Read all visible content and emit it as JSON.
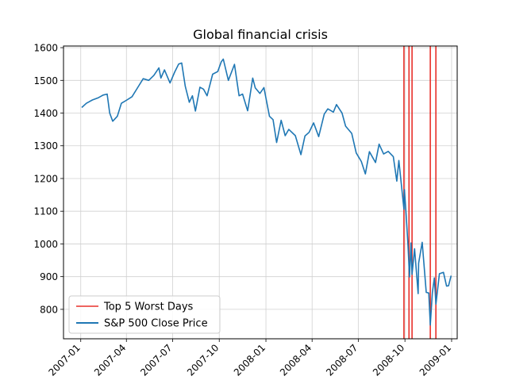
{
  "chart_data": {
    "type": "line",
    "title": "Global financial crisis",
    "xlabel": "",
    "ylabel": "",
    "xlim": [
      "2006-11-28",
      "2009-01-12"
    ],
    "ylim": [
      710,
      1605
    ],
    "grid": true,
    "legend_position": "lower-left",
    "x_ticks": [
      "2007-01",
      "2007-04",
      "2007-07",
      "2007-10",
      "2008-01",
      "2008-04",
      "2008-07",
      "2008-10",
      "2009-01"
    ],
    "y_ticks": [
      800,
      900,
      1000,
      1100,
      1200,
      1300,
      1400,
      1500,
      1600
    ],
    "colors": {
      "price_line": "#1f77b4",
      "worst_days": "#e8302a"
    },
    "series": [
      {
        "name": "S&P 500 Close Price",
        "points": [
          [
            "2007-01-03",
            1417
          ],
          [
            "2007-01-12",
            1430
          ],
          [
            "2007-01-24",
            1440
          ],
          [
            "2007-02-05",
            1447
          ],
          [
            "2007-02-14",
            1455
          ],
          [
            "2007-02-22",
            1458
          ],
          [
            "2007-02-27",
            1400
          ],
          [
            "2007-03-05",
            1375
          ],
          [
            "2007-03-14",
            1390
          ],
          [
            "2007-03-22",
            1430
          ],
          [
            "2007-04-02",
            1440
          ],
          [
            "2007-04-12",
            1450
          ],
          [
            "2007-04-24",
            1480
          ],
          [
            "2007-05-04",
            1505
          ],
          [
            "2007-05-15",
            1500
          ],
          [
            "2007-05-25",
            1515
          ],
          [
            "2007-06-04",
            1538
          ],
          [
            "2007-06-08",
            1507
          ],
          [
            "2007-06-15",
            1532
          ],
          [
            "2007-06-26",
            1492
          ],
          [
            "2007-07-05",
            1525
          ],
          [
            "2007-07-13",
            1550
          ],
          [
            "2007-07-19",
            1553
          ],
          [
            "2007-07-26",
            1482
          ],
          [
            "2007-08-03",
            1433
          ],
          [
            "2007-08-09",
            1453
          ],
          [
            "2007-08-15",
            1406
          ],
          [
            "2007-08-24",
            1479
          ],
          [
            "2007-08-31",
            1473
          ],
          [
            "2007-09-07",
            1453
          ],
          [
            "2007-09-18",
            1519
          ],
          [
            "2007-09-28",
            1527
          ],
          [
            "2007-10-05",
            1557
          ],
          [
            "2007-10-09",
            1565
          ],
          [
            "2007-10-19",
            1500
          ],
          [
            "2007-10-31",
            1549
          ],
          [
            "2007-11-09",
            1453
          ],
          [
            "2007-11-16",
            1458
          ],
          [
            "2007-11-26",
            1407
          ],
          [
            "2007-12-06",
            1507
          ],
          [
            "2007-12-11",
            1477
          ],
          [
            "2007-12-20",
            1460
          ],
          [
            "2007-12-28",
            1478
          ],
          [
            "2008-01-08",
            1390
          ],
          [
            "2008-01-15",
            1380
          ],
          [
            "2008-01-22",
            1310
          ],
          [
            "2008-01-31",
            1378
          ],
          [
            "2008-02-08",
            1331
          ],
          [
            "2008-02-15",
            1350
          ],
          [
            "2008-02-28",
            1331
          ],
          [
            "2008-03-10",
            1273
          ],
          [
            "2008-03-18",
            1330
          ],
          [
            "2008-03-26",
            1341
          ],
          [
            "2008-04-04",
            1370
          ],
          [
            "2008-04-14",
            1328
          ],
          [
            "2008-04-25",
            1397
          ],
          [
            "2008-05-02",
            1413
          ],
          [
            "2008-05-13",
            1403
          ],
          [
            "2008-05-19",
            1426
          ],
          [
            "2008-05-30",
            1400
          ],
          [
            "2008-06-06",
            1360
          ],
          [
            "2008-06-18",
            1338
          ],
          [
            "2008-06-27",
            1278
          ],
          [
            "2008-07-07",
            1252
          ],
          [
            "2008-07-15",
            1214
          ],
          [
            "2008-07-23",
            1282
          ],
          [
            "2008-08-04",
            1249
          ],
          [
            "2008-08-11",
            1305
          ],
          [
            "2008-08-20",
            1275
          ],
          [
            "2008-08-29",
            1283
          ],
          [
            "2008-09-08",
            1267
          ],
          [
            "2008-09-15",
            1192
          ],
          [
            "2008-09-19",
            1255
          ],
          [
            "2008-09-29",
            1106
          ],
          [
            "2008-09-30",
            1166
          ],
          [
            "2008-10-03",
            1100
          ],
          [
            "2008-10-07",
            996
          ],
          [
            "2008-10-10",
            899
          ],
          [
            "2008-10-13",
            1003
          ],
          [
            "2008-10-15",
            907
          ],
          [
            "2008-10-20",
            985
          ],
          [
            "2008-10-27",
            848
          ],
          [
            "2008-10-28",
            941
          ],
          [
            "2008-11-04",
            1005
          ],
          [
            "2008-11-12",
            852
          ],
          [
            "2008-11-17",
            850
          ],
          [
            "2008-11-20",
            752
          ],
          [
            "2008-11-24",
            851
          ],
          [
            "2008-11-28",
            896
          ],
          [
            "2008-12-01",
            816
          ],
          [
            "2008-12-08",
            909
          ],
          [
            "2008-12-16",
            913
          ],
          [
            "2008-12-22",
            871
          ],
          [
            "2008-12-26",
            872
          ],
          [
            "2008-12-31",
            903
          ]
        ]
      }
    ],
    "worst_days_series_name": "Top 5 Worst Days",
    "worst_days": [
      "2008-09-29",
      "2008-10-09",
      "2008-10-15",
      "2008-11-20",
      "2008-12-01"
    ]
  }
}
